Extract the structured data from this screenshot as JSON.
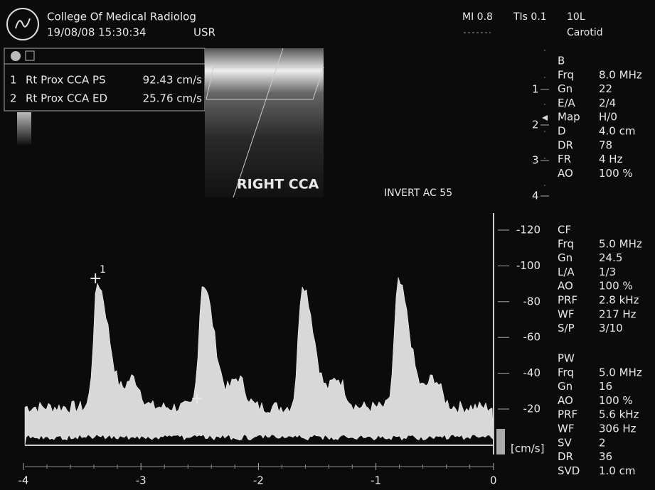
{
  "header": {
    "institution": "College Of Medical Radiolog",
    "datetime": "19/08/08 15:30:34",
    "user": "USR",
    "mi": "MI 0.8",
    "tis": "TIs 0.1",
    "probe": "10L",
    "preset": "Carotid"
  },
  "measurements": [
    {
      "index": "1",
      "label": "Rt Prox CCA PS",
      "value": "92.43 cm/s"
    },
    {
      "index": "2",
      "label": "Rt Prox CCA ED",
      "value": "25.76 cm/s"
    }
  ],
  "image_label": "RIGHT CCA",
  "invert": "INVERT AC 55",
  "depth_scale": [
    "1",
    "2",
    "3",
    "4"
  ],
  "cursor_label": "1",
  "params": [
    {
      "title": "B",
      "rows": [
        [
          "Frq",
          "8.0 MHz"
        ],
        [
          "Gn",
          "22"
        ],
        [
          "E/A",
          "2/4"
        ],
        [
          "Map",
          "H/0"
        ],
        [
          "D",
          "4.0 cm"
        ],
        [
          "DR",
          "78"
        ],
        [
          "FR",
          "4 Hz"
        ],
        [
          "AO",
          "100 %"
        ]
      ]
    },
    {
      "title": "CF",
      "rows": [
        [
          "Frq",
          "5.0 MHz"
        ],
        [
          "Gn",
          "24.5"
        ],
        [
          "L/A",
          "1/3"
        ],
        [
          "AO",
          "100 %"
        ],
        [
          "PRF",
          "2.8 kHz"
        ],
        [
          "WF",
          "217 Hz"
        ],
        [
          "S/P",
          "3/10"
        ]
      ]
    },
    {
      "title": "PW",
      "rows": [
        [
          "Frq",
          "5.0 MHz"
        ],
        [
          "Gn",
          "16"
        ],
        [
          "AO",
          "100 %"
        ],
        [
          "PRF",
          "5.6 kHz"
        ],
        [
          "WF",
          "306 Hz"
        ],
        [
          "SV",
          "2"
        ],
        [
          "DR",
          "36"
        ],
        [
          "SVD",
          "1.0 cm"
        ]
      ]
    }
  ],
  "velocity_scale": [
    "-120",
    "-100",
    "-80",
    "-60",
    "-40",
    "-20"
  ],
  "velocity_unit": "[cm/s]",
  "time_scale": [
    "-4",
    "-3",
    "-2",
    "-1",
    "0"
  ]
}
